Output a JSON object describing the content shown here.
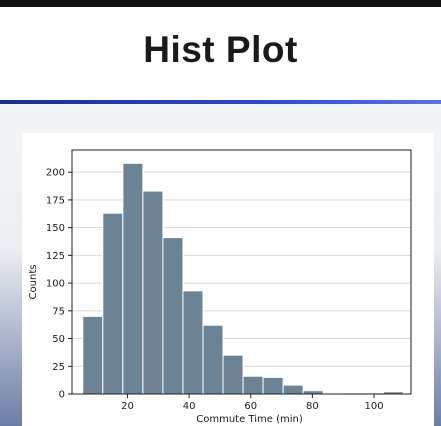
{
  "slide": {
    "title": "Hist Plot"
  },
  "chart_data": {
    "type": "bar",
    "subtype": "histogram",
    "title": "",
    "xlabel": "Commute Time (min)",
    "ylabel": "Counts",
    "xlim": [
      2,
      112
    ],
    "ylim": [
      0,
      220
    ],
    "xticks": [
      20,
      40,
      60,
      80,
      100
    ],
    "yticks": [
      0,
      25,
      50,
      75,
      100,
      125,
      150,
      175,
      200
    ],
    "grid": "y",
    "bar_color": "#6b8394",
    "bins": [
      {
        "start": 5.5,
        "end": 12,
        "count": 70
      },
      {
        "start": 12,
        "end": 18.5,
        "count": 163
      },
      {
        "start": 18.5,
        "end": 25,
        "count": 208
      },
      {
        "start": 25,
        "end": 31.5,
        "count": 183
      },
      {
        "start": 31.5,
        "end": 38,
        "count": 141
      },
      {
        "start": 38,
        "end": 44.5,
        "count": 93
      },
      {
        "start": 44.5,
        "end": 51,
        "count": 62
      },
      {
        "start": 51,
        "end": 57.5,
        "count": 35
      },
      {
        "start": 57.5,
        "end": 64,
        "count": 16
      },
      {
        "start": 64,
        "end": 70.5,
        "count": 15
      },
      {
        "start": 70.5,
        "end": 77,
        "count": 8
      },
      {
        "start": 77,
        "end": 83.5,
        "count": 3
      },
      {
        "start": 83.5,
        "end": 90,
        "count": 0
      },
      {
        "start": 90,
        "end": 96.5,
        "count": 1
      },
      {
        "start": 96.5,
        "end": 103,
        "count": 1
      },
      {
        "start": 103,
        "end": 109.5,
        "count": 2
      }
    ]
  }
}
